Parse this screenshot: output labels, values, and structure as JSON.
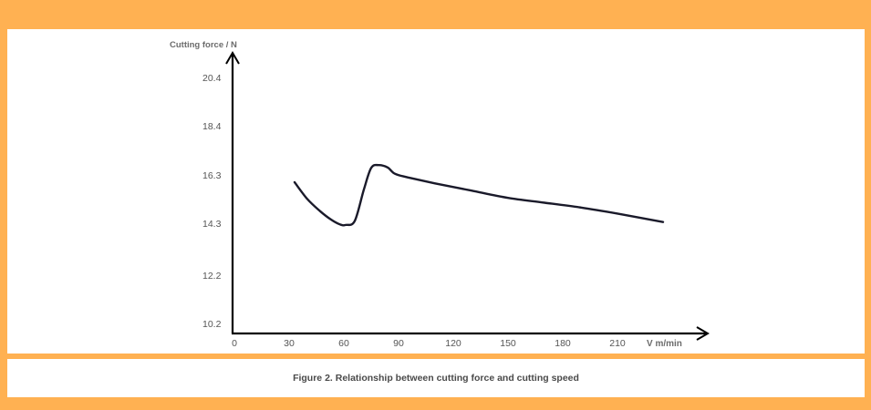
{
  "chart_data": {
    "type": "line",
    "ylabel": "Cutting force / N",
    "xlabel": "V m/min",
    "x_ticks": [
      "0",
      "30",
      "60",
      "90",
      "120",
      "150",
      "180",
      "210"
    ],
    "y_ticks": [
      "10.2",
      "12.2",
      "14.3",
      "16.3",
      "18.4",
      "20.4"
    ],
    "series": [
      {
        "x": [
          33,
          40,
          47,
          53,
          58,
          61,
          66,
          71,
          75,
          79,
          84,
          88,
          95,
          110,
          130,
          150,
          170,
          190,
          210,
          235
        ],
        "y": [
          16.0,
          15.3,
          14.8,
          14.45,
          14.25,
          14.23,
          14.4,
          15.7,
          16.6,
          16.72,
          16.62,
          16.35,
          16.2,
          15.95,
          15.65,
          15.35,
          15.15,
          14.95,
          14.7,
          14.35
        ]
      }
    ],
    "xlim": [
      0,
      250
    ],
    "y_tick_values": [
      10.2,
      12.2,
      14.3,
      16.3,
      18.4,
      20.4
    ],
    "line_color": "#1a1a2a",
    "axis_color": "#000000"
  },
  "caption": "Figure 2. Relationship between cutting force and cutting speed",
  "colors": {
    "background": "#ffb152",
    "panel": "#ffffff"
  }
}
